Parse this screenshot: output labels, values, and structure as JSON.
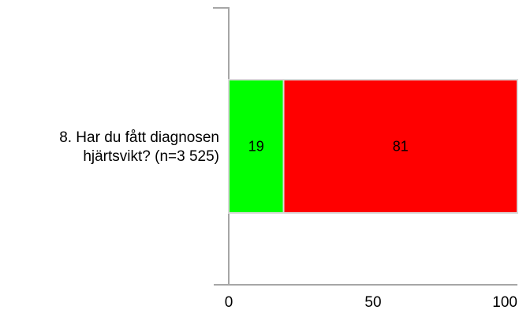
{
  "chart_data": {
    "type": "bar",
    "orientation": "horizontal",
    "stacked": true,
    "categories": [
      "8. Har du fått diagnosen hjärtsvikt? (n=3 525)"
    ],
    "category_label_lines": [
      "8. Har du fått diagnosen",
      "hjärtsvikt? (n=3 525)"
    ],
    "series": [
      {
        "values": [
          19
        ],
        "color": "#00ff00",
        "data_labels": [
          "19"
        ]
      },
      {
        "values": [
          81
        ],
        "color": "#ff0000",
        "data_labels": [
          "81"
        ]
      }
    ],
    "xlim": [
      0,
      100
    ],
    "xticks": [
      0,
      50,
      100
    ],
    "xtick_labels": [
      "0",
      "50",
      "100"
    ],
    "grid": false,
    "legend": "none"
  }
}
